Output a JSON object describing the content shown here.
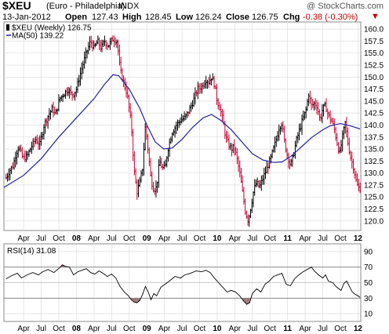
{
  "header": {
    "symbol": "$XEU",
    "name": "(Euro - Philadelphia)",
    "exchange": "INDX",
    "logo": "@ StockCharts.com",
    "date": "13-Jan-2012",
    "open_label": "Open",
    "open": "127.43",
    "high_label": "High",
    "high": "128.45",
    "low_label": "Low",
    "low": "126.24",
    "close_label": "Close",
    "close": "126.75",
    "chg_label": "Chg",
    "chg": "-0.38 (-0.30%)",
    "chg_icon": "down-triangle-icon"
  },
  "colors": {
    "up": "#000000",
    "down": "#cc0033",
    "ma": "#1f1f9f",
    "rsi": "#000000",
    "rsi_fill": "#9e7a7a",
    "grid": "#d8d8d8"
  },
  "chart_data": [
    {
      "type": "ohlc",
      "legend": [
        {
          "label": "$XEU (Weekly) 126.75",
          "marker": "bar-icon"
        },
        {
          "label": "MA(50) 139.22",
          "marker": "line-icon"
        }
      ],
      "y_ticks": [
        120.0,
        122.5,
        125.0,
        127.5,
        130.0,
        132.5,
        135.0,
        137.5,
        140.0,
        142.5,
        145.0,
        147.5,
        150.0,
        152.5,
        155.0,
        157.5,
        160.0
      ],
      "ylim": [
        118.0,
        161.5
      ],
      "x_ticks": [
        {
          "label": "Apr",
          "t": 0.25
        },
        {
          "label": "Jul",
          "t": 0.5
        },
        {
          "label": "Oct",
          "t": 0.75
        },
        {
          "label": "08",
          "t": 1.0,
          "bold": true
        },
        {
          "label": "Apr",
          "t": 1.25
        },
        {
          "label": "Jul",
          "t": 1.5
        },
        {
          "label": "Oct",
          "t": 1.75
        },
        {
          "label": "09",
          "t": 2.0,
          "bold": true
        },
        {
          "label": "Apr",
          "t": 2.25
        },
        {
          "label": "Jul",
          "t": 2.5
        },
        {
          "label": "Oct",
          "t": 2.75
        },
        {
          "label": "10",
          "t": 3.0,
          "bold": true
        },
        {
          "label": "Apr",
          "t": 3.25
        },
        {
          "label": "Jul",
          "t": 3.5
        },
        {
          "label": "Oct",
          "t": 3.75
        },
        {
          "label": "11",
          "t": 4.0,
          "bold": true
        },
        {
          "label": "Apr",
          "t": 4.25
        },
        {
          "label": "Jul",
          "t": 4.5
        },
        {
          "label": "Oct",
          "t": 4.75
        },
        {
          "label": "12",
          "t": 5.0,
          "bold": true
        }
      ],
      "xlim": [
        -0.03,
        5.04
      ],
      "price_path": [
        [
          0.0,
          129.0
        ],
        [
          0.05,
          130.5
        ],
        [
          0.1,
          131.5
        ],
        [
          0.14,
          134.0
        ],
        [
          0.18,
          135.5
        ],
        [
          0.24,
          133.0
        ],
        [
          0.3,
          133.5
        ],
        [
          0.36,
          135.5
        ],
        [
          0.42,
          137.0
        ],
        [
          0.48,
          136.0
        ],
        [
          0.54,
          140.0
        ],
        [
          0.6,
          142.0
        ],
        [
          0.66,
          143.5
        ],
        [
          0.7,
          142.0
        ],
        [
          0.76,
          145.5
        ],
        [
          0.82,
          146.5
        ],
        [
          0.88,
          147.5
        ],
        [
          0.92,
          146.5
        ],
        [
          0.96,
          146.5
        ],
        [
          1.0,
          147.5
        ],
        [
          1.06,
          151.0
        ],
        [
          1.1,
          153.0
        ],
        [
          1.14,
          155.0
        ],
        [
          1.2,
          157.5
        ],
        [
          1.25,
          156.0
        ],
        [
          1.3,
          157.5
        ],
        [
          1.35,
          156.0
        ],
        [
          1.4,
          157.5
        ],
        [
          1.45,
          156.5
        ],
        [
          1.52,
          158.0
        ],
        [
          1.58,
          157.5
        ],
        [
          1.62,
          151.5
        ],
        [
          1.68,
          148.5
        ],
        [
          1.72,
          146.5
        ],
        [
          1.78,
          140.0
        ],
        [
          1.82,
          130.5
        ],
        [
          1.86,
          126.0
        ],
        [
          1.9,
          128.0
        ],
        [
          1.94,
          131.0
        ],
        [
          1.98,
          140.0
        ],
        [
          2.02,
          134.5
        ],
        [
          2.06,
          128.5
        ],
        [
          2.1,
          126.5
        ],
        [
          2.14,
          127.0
        ],
        [
          2.18,
          132.5
        ],
        [
          2.22,
          131.0
        ],
        [
          2.26,
          131.0
        ],
        [
          2.3,
          135.0
        ],
        [
          2.36,
          138.5
        ],
        [
          2.42,
          140.0
        ],
        [
          2.48,
          141.0
        ],
        [
          2.54,
          141.5
        ],
        [
          2.6,
          143.0
        ],
        [
          2.66,
          145.0
        ],
        [
          2.72,
          147.5
        ],
        [
          2.78,
          148.0
        ],
        [
          2.84,
          149.5
        ],
        [
          2.88,
          149.0
        ],
        [
          2.92,
          150.0
        ],
        [
          2.96,
          148.5
        ],
        [
          3.0,
          145.0
        ],
        [
          3.04,
          143.5
        ],
        [
          3.08,
          141.0
        ],
        [
          3.12,
          137.5
        ],
        [
          3.16,
          136.0
        ],
        [
          3.2,
          135.0
        ],
        [
          3.24,
          135.5
        ],
        [
          3.28,
          133.0
        ],
        [
          3.32,
          130.0
        ],
        [
          3.36,
          126.0
        ],
        [
          3.4,
          122.0
        ],
        [
          3.44,
          120.0
        ],
        [
          3.48,
          123.0
        ],
        [
          3.52,
          126.5
        ],
        [
          3.56,
          128.0
        ],
        [
          3.6,
          127.0
        ],
        [
          3.64,
          128.5
        ],
        [
          3.68,
          130.0
        ],
        [
          3.72,
          131.5
        ],
        [
          3.76,
          133.0
        ],
        [
          3.8,
          135.0
        ],
        [
          3.84,
          137.0
        ],
        [
          3.88,
          139.5
        ],
        [
          3.92,
          140.5
        ],
        [
          3.96,
          136.0
        ],
        [
          4.0,
          133.5
        ],
        [
          4.04,
          131.5
        ],
        [
          4.08,
          133.5
        ],
        [
          4.12,
          136.5
        ],
        [
          4.16,
          138.5
        ],
        [
          4.2,
          140.5
        ],
        [
          4.26,
          143.0
        ],
        [
          4.3,
          146.5
        ],
        [
          4.34,
          144.0
        ],
        [
          4.38,
          144.5
        ],
        [
          4.42,
          144.0
        ],
        [
          4.46,
          141.0
        ],
        [
          4.5,
          143.5
        ],
        [
          4.54,
          144.0
        ],
        [
          4.58,
          142.0
        ],
        [
          4.62,
          141.0
        ],
        [
          4.66,
          139.5
        ],
        [
          4.7,
          136.5
        ],
        [
          4.74,
          134.0
        ],
        [
          4.78,
          137.5
        ],
        [
          4.82,
          140.5
        ],
        [
          4.86,
          136.0
        ],
        [
          4.9,
          133.0
        ],
        [
          4.94,
          131.0
        ],
        [
          4.97,
          128.5
        ],
        [
          5.0,
          127.0
        ],
        [
          5.03,
          126.75
        ]
      ],
      "ma50": [
        [
          -0.03,
          127.0
        ],
        [
          0.25,
          129.5
        ],
        [
          0.5,
          133.0
        ],
        [
          0.75,
          137.5
        ],
        [
          1.0,
          141.5
        ],
        [
          1.25,
          145.5
        ],
        [
          1.4,
          148.5
        ],
        [
          1.52,
          150.5
        ],
        [
          1.6,
          150.3
        ],
        [
          1.75,
          147.5
        ],
        [
          1.9,
          143.5
        ],
        [
          2.0,
          140.0
        ],
        [
          2.12,
          136.5
        ],
        [
          2.24,
          135.0
        ],
        [
          2.36,
          135.2
        ],
        [
          2.5,
          137.0
        ],
        [
          2.65,
          139.5
        ],
        [
          2.8,
          141.5
        ],
        [
          2.92,
          142.2
        ],
        [
          3.05,
          141.0
        ],
        [
          3.2,
          139.0
        ],
        [
          3.35,
          136.5
        ],
        [
          3.5,
          134.0
        ],
        [
          3.65,
          132.7
        ],
        [
          3.8,
          132.2
        ],
        [
          3.92,
          132.3
        ],
        [
          4.05,
          133.5
        ],
        [
          4.2,
          135.5
        ],
        [
          4.35,
          137.5
        ],
        [
          4.5,
          139.0
        ],
        [
          4.6,
          139.8
        ],
        [
          4.75,
          140.3
        ],
        [
          4.9,
          139.8
        ],
        [
          5.03,
          139.2
        ]
      ]
    },
    {
      "type": "line",
      "label": "RSI(14) 31.08",
      "y_ticks": [
        10,
        30,
        50,
        70,
        90
      ],
      "ylim": [
        0,
        100
      ],
      "overbought": 70,
      "oversold": 30,
      "rsi_path": [
        [
          0.0,
          55
        ],
        [
          0.08,
          59
        ],
        [
          0.16,
          62
        ],
        [
          0.22,
          56
        ],
        [
          0.3,
          60
        ],
        [
          0.38,
          63
        ],
        [
          0.46,
          60
        ],
        [
          0.52,
          64
        ],
        [
          0.6,
          67
        ],
        [
          0.68,
          63
        ],
        [
          0.76,
          69
        ],
        [
          0.8,
          73
        ],
        [
          0.84,
          71
        ],
        [
          0.9,
          70
        ],
        [
          0.96,
          60
        ],
        [
          1.02,
          64
        ],
        [
          1.08,
          66
        ],
        [
          1.14,
          68
        ],
        [
          1.2,
          63
        ],
        [
          1.26,
          61
        ],
        [
          1.32,
          65
        ],
        [
          1.38,
          62
        ],
        [
          1.44,
          58
        ],
        [
          1.5,
          61
        ],
        [
          1.56,
          56
        ],
        [
          1.62,
          45
        ],
        [
          1.68,
          38
        ],
        [
          1.74,
          33
        ],
        [
          1.78,
          28
        ],
        [
          1.82,
          25
        ],
        [
          1.86,
          24
        ],
        [
          1.9,
          27
        ],
        [
          1.94,
          35
        ],
        [
          1.98,
          45
        ],
        [
          2.02,
          38
        ],
        [
          2.06,
          28
        ],
        [
          2.1,
          36
        ],
        [
          2.14,
          33
        ],
        [
          2.2,
          44
        ],
        [
          2.26,
          48
        ],
        [
          2.32,
          52
        ],
        [
          2.4,
          58
        ],
        [
          2.48,
          56
        ],
        [
          2.54,
          60
        ],
        [
          2.62,
          62
        ],
        [
          2.7,
          65
        ],
        [
          2.78,
          64
        ],
        [
          2.84,
          66
        ],
        [
          2.9,
          63
        ],
        [
          2.96,
          56
        ],
        [
          3.02,
          50
        ],
        [
          3.08,
          44
        ],
        [
          3.14,
          38
        ],
        [
          3.2,
          40
        ],
        [
          3.26,
          38
        ],
        [
          3.32,
          33
        ],
        [
          3.38,
          26
        ],
        [
          3.42,
          22
        ],
        [
          3.46,
          24
        ],
        [
          3.5,
          36
        ],
        [
          3.56,
          42
        ],
        [
          3.62,
          38
        ],
        [
          3.68,
          48
        ],
        [
          3.74,
          52
        ],
        [
          3.8,
          58
        ],
        [
          3.86,
          60
        ],
        [
          3.92,
          62
        ],
        [
          3.98,
          48
        ],
        [
          4.04,
          46
        ],
        [
          4.1,
          55
        ],
        [
          4.16,
          60
        ],
        [
          4.22,
          64
        ],
        [
          4.28,
          67
        ],
        [
          4.34,
          70
        ],
        [
          4.38,
          65
        ],
        [
          4.44,
          60
        ],
        [
          4.5,
          56
        ],
        [
          4.54,
          60
        ],
        [
          4.58,
          52
        ],
        [
          4.64,
          50
        ],
        [
          4.7,
          44
        ],
        [
          4.76,
          40
        ],
        [
          4.8,
          49
        ],
        [
          4.84,
          52
        ],
        [
          4.88,
          45
        ],
        [
          4.92,
          38
        ],
        [
          4.96,
          35
        ],
        [
          5.0,
          33
        ],
        [
          5.03,
          31.08
        ]
      ]
    }
  ]
}
